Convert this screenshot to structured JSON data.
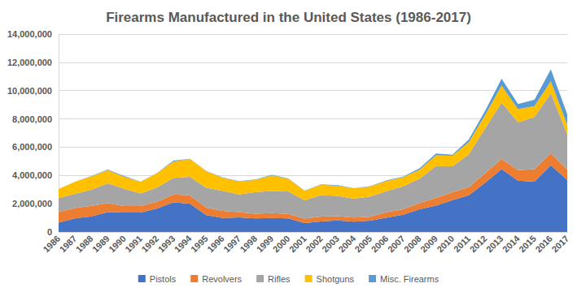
{
  "chart_data": {
    "type": "area",
    "title": "Firearms Manufactured in the United States (1986-2017)",
    "categories": [
      "1986",
      "1987",
      "1988",
      "1989",
      "1990",
      "1991",
      "1992",
      "1993",
      "1994",
      "1995",
      "1996",
      "1997",
      "1998",
      "1999",
      "2000",
      "2001",
      "2002",
      "2003",
      "2004",
      "2005",
      "2006",
      "2007",
      "2008",
      "2009",
      "2010",
      "2011",
      "2012",
      "2013",
      "2014",
      "2015",
      "2016",
      "2017"
    ],
    "series": [
      {
        "name": "Pistols",
        "color": "#4472c4",
        "values": [
          662973,
          964561,
          1101011,
          1404753,
          1371427,
          1378252,
          1669537,
          2093362,
          2004298,
          1195284,
          987528,
          1036077,
          960365,
          995446,
          962901,
          626836,
          741514,
          811660,
          728511,
          803425,
          1021260,
          1219664,
          1609381,
          1868258,
          2258450,
          2598133,
          3487883,
          4441726,
          3633454,
          3557199,
          4720075,
          3691010
        ]
      },
      {
        "name": "Revolvers",
        "color": "#ed7d31",
        "values": [
          761414,
          722512,
          754744,
          628573,
          470495,
          456966,
          469413,
          562292,
          586450,
          527664,
          498944,
          370428,
          324390,
          335784,
          318960,
          320143,
          347070,
          309364,
          294099,
          274205,
          385069,
          391334,
          431753,
          547195,
          558927,
          572857,
          667357,
          725282,
          744047,
          885259,
          856291,
          720917
        ]
      },
      {
        "name": "Rifles",
        "color": "#a5a5a5",
        "values": [
          970507,
          1007661,
          1144707,
          1407400,
          1211664,
          883482,
          1001833,
          1173694,
          1316607,
          1411120,
          1424315,
          1251341,
          1535690,
          1569685,
          1583042,
          1284554,
          1515286,
          1430324,
          1325138,
          1431372,
          1496505,
          1610923,
          1734536,
          2248851,
          1830556,
          2318088,
          3168206,
          3979570,
          3379549,
          3691799,
          4239335,
          2504092
        ]
      },
      {
        "name": "Shotguns",
        "color": "#ffc000",
        "values": [
          641482,
          857949,
          928070,
          935541,
          848948,
          828426,
          1018204,
          1144940,
          1254926,
          1173645,
          925732,
          915978,
          868639,
          1106995,
          898442,
          679813,
          741325,
          726078,
          731769,
          709313,
          714618,
          645231,
          630710,
          752699,
          743378,
          862401,
          949010,
          1203072,
          935411,
          777273,
          848617,
          653139
        ]
      },
      {
        "name": "Misc. Firearms",
        "color": "#5b9bd5",
        "values": [
          4558,
          6980,
          35345,
          42126,
          57434,
          15980,
          16849,
          81349,
          10936,
          8629,
          17920,
          19680,
          24506,
          39837,
          30196,
          21309,
          21700,
          34961,
          19508,
          23157,
          35872,
          55461,
          92564,
          138815,
          67929,
          190407,
          306154,
          495142,
          358165,
          447131,
          833123,
          758634
        ]
      }
    ],
    "ylim": [
      0,
      14000000
    ],
    "yticks": [
      0,
      {
        "value": 2000000,
        "label": "2,000,000"
      },
      {
        "value": 4000000,
        "label": "4,000,000"
      },
      {
        "value": 6000000,
        "label": "6,000,000"
      },
      {
        "value": 8000000,
        "label": "8,000,000"
      },
      {
        "value": 10000000,
        "label": "10,000,000"
      },
      {
        "value": 12000000,
        "label": "12,000,000"
      },
      {
        "value": 14000000,
        "label": "14,000,000"
      }
    ],
    "stacked": true,
    "grid": true,
    "legend": "bottom"
  }
}
